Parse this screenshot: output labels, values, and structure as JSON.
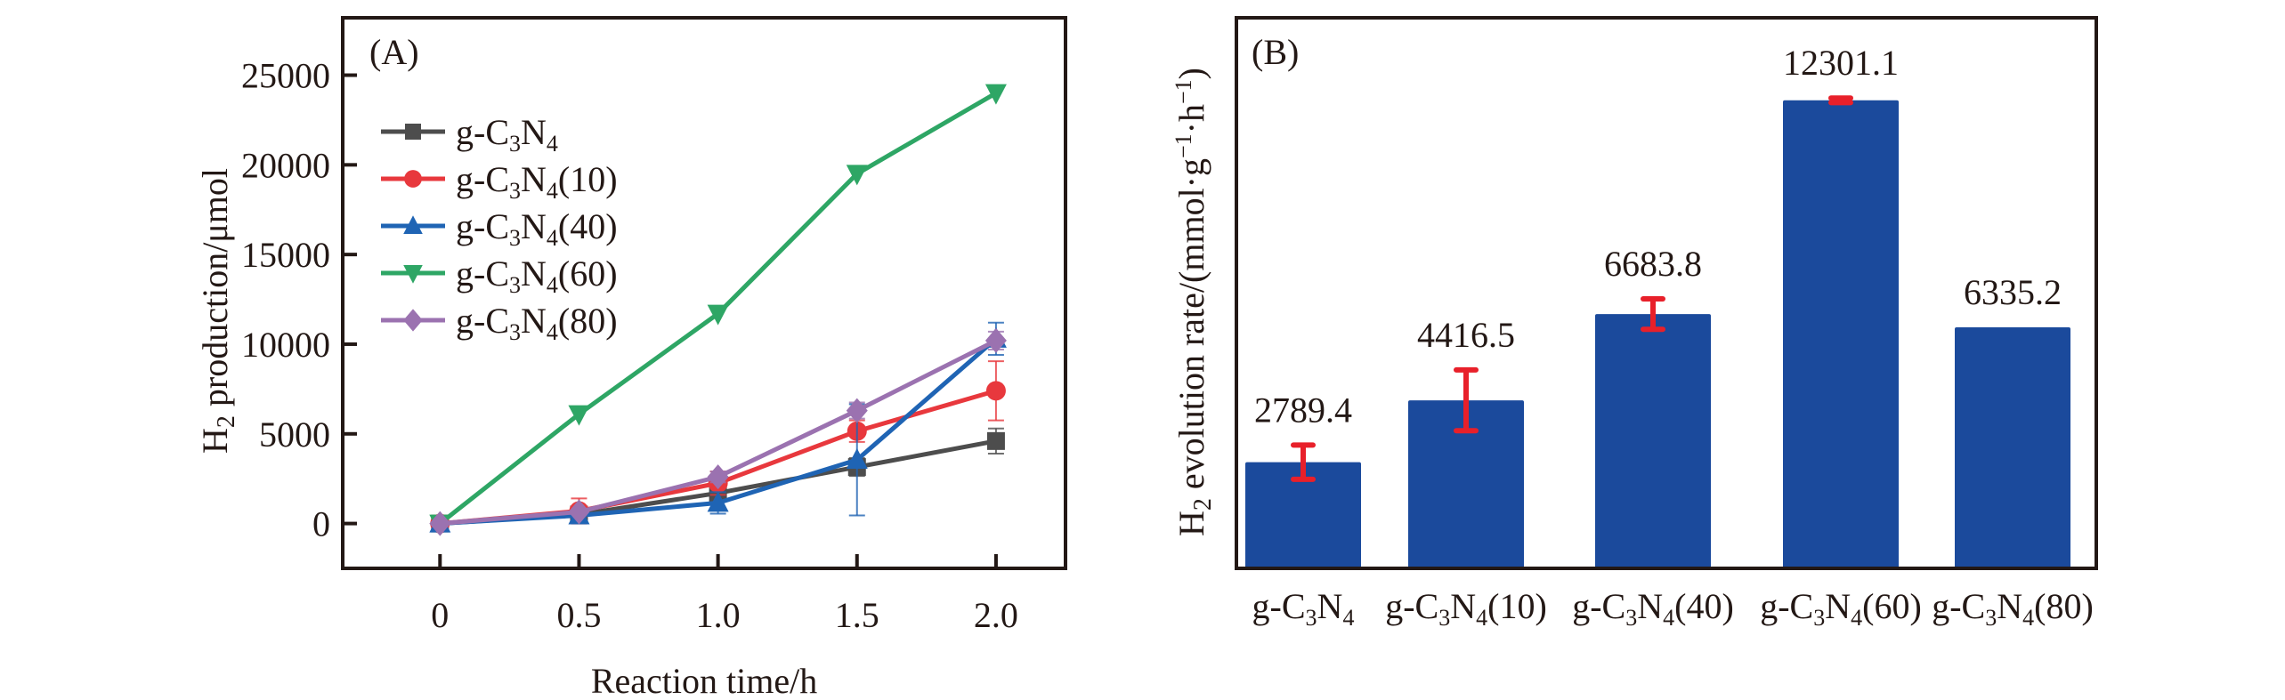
{
  "chart_data": [
    {
      "panel": "(A)",
      "type": "line",
      "title": "",
      "xlabel": "Reaction time/h",
      "ylabel": "H2 production/μmol",
      "ylabel_parts": {
        "main": "H",
        "sub": "2",
        "rest": " production/μmol"
      },
      "x": [
        0,
        0.5,
        1.0,
        1.5,
        2.0
      ],
      "x_tick_labels": [
        "0",
        "0.5",
        "1.0",
        "1.5",
        "2.0"
      ],
      "y_ticks": [
        0,
        5000,
        10000,
        15000,
        20000,
        25000
      ],
      "y_tick_labels": [
        "0",
        "5000",
        "10000",
        "15000",
        "20000",
        "25000"
      ],
      "xlim": [
        -0.35,
        2.25
      ],
      "ylim": [
        -2500,
        28200
      ],
      "grid": false,
      "legend_position": "upper-left",
      "series": [
        {
          "name": "g-C3N4",
          "label": {
            "base": "g-C",
            "sub1": "3",
            "mid": "N",
            "sub2": "4",
            "suffix": ""
          },
          "color": "#4d4d4d",
          "marker": "square",
          "values": [
            0,
            500,
            1700,
            3150,
            4600
          ],
          "errors": [
            0,
            150,
            250,
            500,
            700
          ]
        },
        {
          "name": "g-C3N4(10)",
          "label": {
            "base": "g-C",
            "sub1": "3",
            "mid": "N",
            "sub2": "4",
            "suffix": "(10)"
          },
          "color": "#e8383d",
          "marker": "circle",
          "values": [
            0,
            700,
            2250,
            5150,
            7400
          ],
          "errors": [
            0,
            700,
            650,
            600,
            1650
          ]
        },
        {
          "name": "g-C3N4(40)",
          "label": {
            "base": "g-C",
            "sub1": "3",
            "mid": "N",
            "sub2": "4",
            "suffix": "(40)"
          },
          "color": "#1f64b4",
          "marker": "triangle-up",
          "values": [
            0,
            450,
            1150,
            3550,
            10300
          ],
          "errors": [
            0,
            200,
            600,
            3100,
            900
          ]
        },
        {
          "name": "g-C3N4(60)",
          "label": {
            "base": "g-C",
            "sub1": "3",
            "mid": "N",
            "sub2": "4",
            "suffix": "(60)"
          },
          "color": "#2ea665",
          "marker": "triangle-down",
          "values": [
            0,
            6100,
            11700,
            19500,
            24000
          ],
          "errors": [
            0,
            0,
            0,
            0,
            0
          ]
        },
        {
          "name": "g-C3N4(80)",
          "label": {
            "base": "g-C",
            "sub1": "3",
            "mid": "N",
            "sub2": "4",
            "suffix": "(80)"
          },
          "color": "#9b72b0",
          "marker": "diamond",
          "values": [
            0,
            650,
            2600,
            6300,
            10200
          ],
          "errors": [
            0,
            150,
            300,
            450,
            500
          ]
        }
      ]
    },
    {
      "panel": "(B)",
      "type": "bar",
      "title": "",
      "xlabel": "",
      "ylabel": "H2 evolution rate/(mmol·g-1·h-1)",
      "ylabel_parts": {
        "main": "H",
        "sub": "2",
        "rest": " evolution rate/(mmol·g",
        "sup1": "−1",
        "dot": "·h",
        "sup2": "−1",
        "close": ")"
      },
      "categories": [
        "g-C3N4",
        "g-C3N4(10)",
        "g-C3N4(40)",
        "g-C3N4(60)",
        "g-C3N4(80)"
      ],
      "category_labels": [
        {
          "base": "g-C",
          "sub1": "3",
          "mid": "N",
          "sub2": "4",
          "suffix": ""
        },
        {
          "base": "g-C",
          "sub1": "3",
          "mid": "N",
          "sub2": "4",
          "suffix": "(10)"
        },
        {
          "base": "g-C",
          "sub1": "3",
          "mid": "N",
          "sub2": "4",
          "suffix": "(40)"
        },
        {
          "base": "g-C",
          "sub1": "3",
          "mid": "N",
          "sub2": "4",
          "suffix": "(60)"
        },
        {
          "base": "g-C",
          "sub1": "3",
          "mid": "N",
          "sub2": "4",
          "suffix": "(80)"
        }
      ],
      "values": [
        2789.4,
        4416.5,
        6683.8,
        12301.1,
        6335.2
      ],
      "value_labels": [
        "2789.4",
        "4416.5",
        "6683.8",
        "12301.1",
        "6335.2"
      ],
      "errors": [
        450,
        800,
        400,
        60,
        0
      ],
      "bar_color": "#1b4a9c",
      "error_color": "#e8202a",
      "ylim": [
        0,
        14470
      ],
      "y_ticks_shown": false,
      "grid": false
    }
  ]
}
